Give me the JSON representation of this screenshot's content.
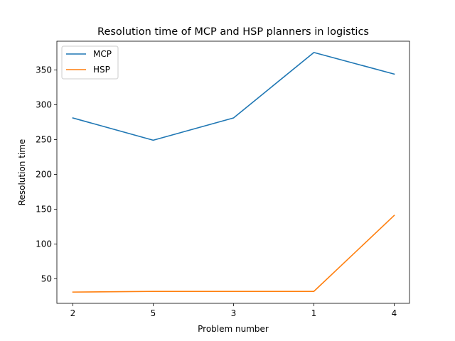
{
  "chart_data": {
    "type": "line",
    "title": "Resolution time of MCP and HSP planners in logistics",
    "xlabel": "Problem number",
    "ylabel": "Resolution time",
    "categories": [
      "2",
      "5",
      "3",
      "1",
      "4"
    ],
    "series": [
      {
        "name": "MCP",
        "color": "#1f77b4",
        "values": [
          281,
          249,
          281,
          375,
          344
        ]
      },
      {
        "name": "HSP",
        "color": "#ff7f0e",
        "values": [
          31,
          32,
          32,
          32,
          141
        ]
      }
    ],
    "ylim": [
      14.8,
      391.2
    ],
    "yticks": [
      50,
      100,
      150,
      200,
      250,
      300,
      350
    ],
    "grid": false,
    "legend_position": "top-left"
  }
}
